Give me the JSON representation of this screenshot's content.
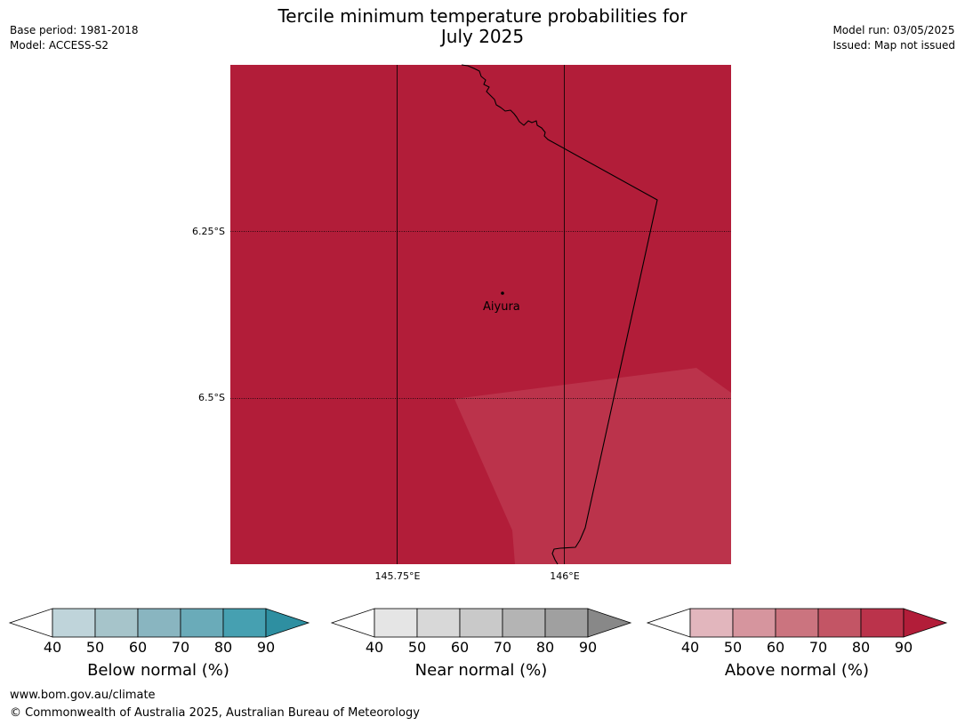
{
  "header": {
    "title_line1": "Tercile minimum temperature probabilities for",
    "title_line2": "July 2025",
    "base_period": "Base period: 1981-2018",
    "model": "Model: ACCESS-S2",
    "model_run": "Model run: 03/05/2025",
    "issued": "Issued: Map not issued"
  },
  "map": {
    "lat_labels": [
      "6.25°S",
      "6.5°S"
    ],
    "lon_labels": [
      "145.75°E",
      "146°E"
    ],
    "town": {
      "name": "Aiyura"
    },
    "fill_main": "#b21d39",
    "fill_lighter": "#bb334b",
    "fill_main_category": "Above normal 80-90%",
    "fill_lighter_category": "Above normal 70-80%"
  },
  "colorbars": [
    {
      "title": "Below normal (%)",
      "ticks": [
        "40",
        "50",
        "60",
        "70",
        "80",
        "90"
      ],
      "colors": [
        "#bfd4da",
        "#a6c4ca",
        "#89b5c0",
        "#6aabb9",
        "#46a0b1",
        "#2e8fa1"
      ]
    },
    {
      "title": "Near normal (%)",
      "ticks": [
        "40",
        "50",
        "60",
        "70",
        "80",
        "90"
      ],
      "colors": [
        "#e5e5e5",
        "#d8d8d8",
        "#c9c9c9",
        "#b4b4b4",
        "#a0a0a0",
        "#888888"
      ]
    },
    {
      "title": "Above normal (%)",
      "ticks": [
        "40",
        "50",
        "60",
        "70",
        "80",
        "90"
      ],
      "colors": [
        "#e2b6bd",
        "#d6959e",
        "#cb747f",
        "#c35565",
        "#bb334b",
        "#b21d39"
      ]
    }
  ],
  "footer": {
    "url": "www.bom.gov.au/climate",
    "copyright": "© Commonwealth of Australia 2025, Australian Bureau of Meteorology"
  }
}
